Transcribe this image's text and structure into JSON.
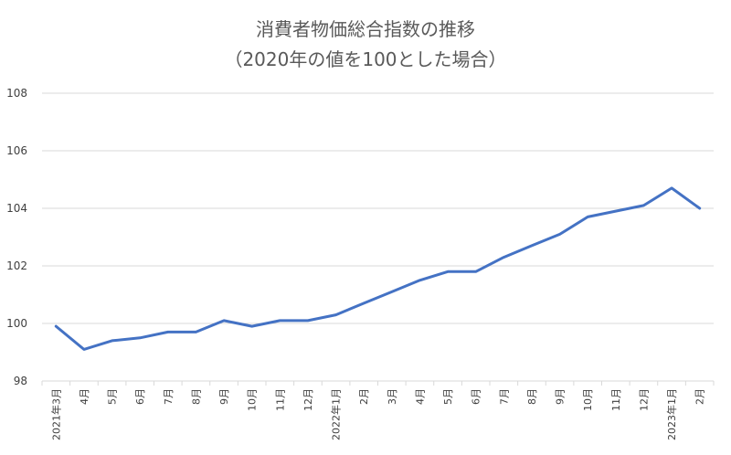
{
  "chart_data": {
    "type": "line",
    "title": "消費者物価総合指数の推移",
    "subtitle": "（2020年の値を100とした場合）",
    "xlabel": "",
    "ylabel": "",
    "ylim": [
      98,
      108
    ],
    "yticks": [
      "98",
      "100",
      "102",
      "104",
      "106",
      "108"
    ],
    "grid": true,
    "categories": [
      "2021年3月",
      "4月",
      "5月",
      "6月",
      "7月",
      "8月",
      "9月",
      "10月",
      "11月",
      "12月",
      "2022年1月",
      "2月",
      "3月",
      "4月",
      "5月",
      "6月",
      "7月",
      "8月",
      "9月",
      "10月",
      "11月",
      "12月",
      "2023年1月",
      "2月"
    ],
    "series": [
      {
        "values": [
          99.9,
          99.1,
          99.4,
          99.5,
          99.7,
          99.7,
          100.1,
          99.9,
          100.1,
          100.1,
          100.3,
          100.7,
          101.1,
          101.5,
          101.8,
          101.8,
          102.3,
          102.7,
          103.1,
          103.7,
          103.9,
          104.1,
          104.7,
          104.0
        ],
        "color": "#4472c4"
      }
    ]
  }
}
